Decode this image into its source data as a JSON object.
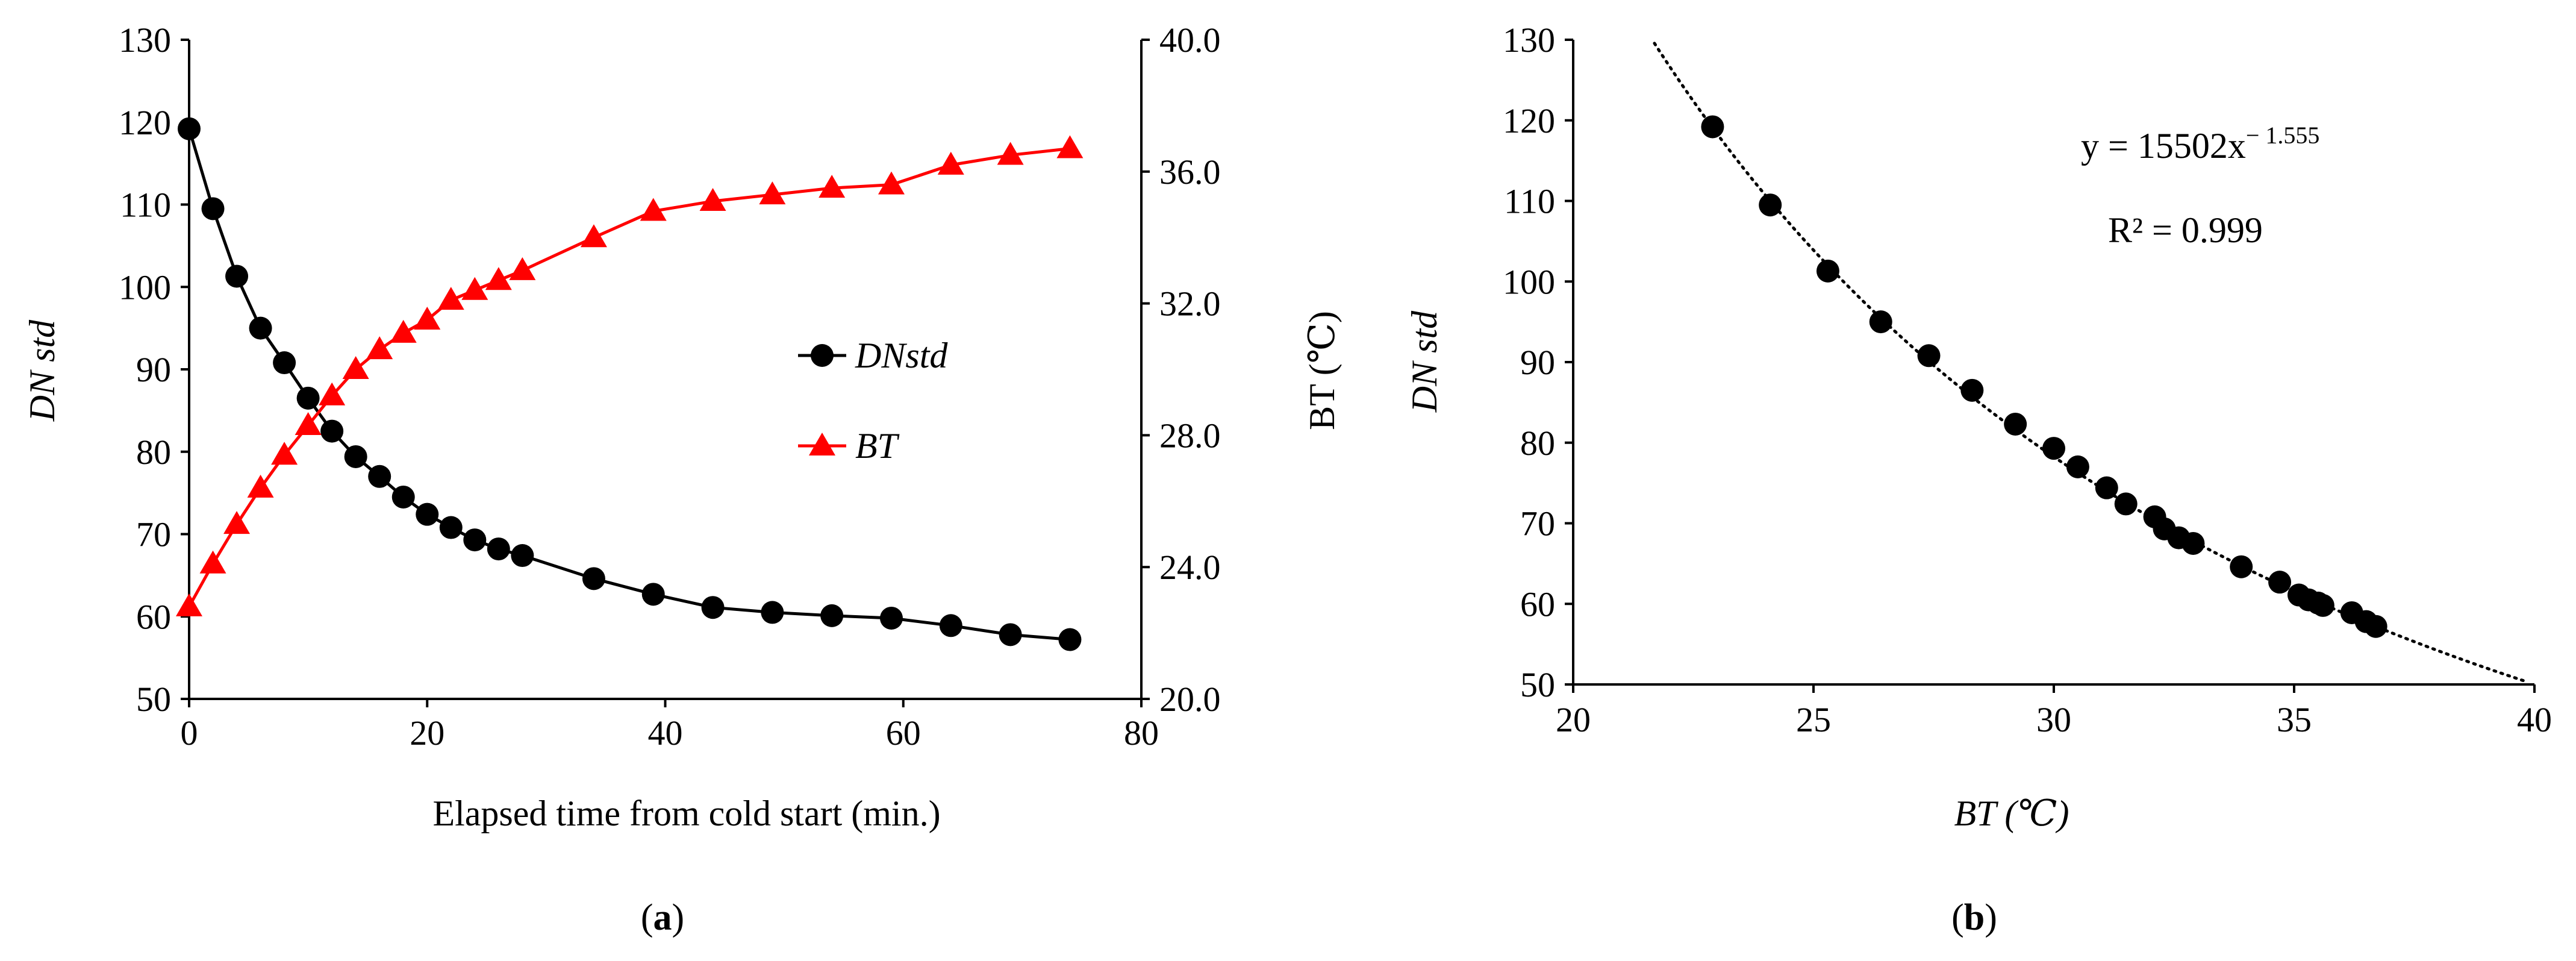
{
  "chart_data": [
    {
      "panel": "(a)",
      "panel_letter": "a",
      "type": "line",
      "xlabel": "Elapsed time from cold start (min.)",
      "ylabel_left": "DN std",
      "ylabel_right": "BT (℃)",
      "xlim": [
        0,
        80
      ],
      "ylim_left": [
        50,
        130
      ],
      "ylim_right": [
        20.0,
        40.0
      ],
      "x_ticks": [
        "0",
        "20",
        "40",
        "60",
        "80"
      ],
      "y_ticks_left": [
        "50",
        "60",
        "70",
        "80",
        "90",
        "100",
        "110",
        "120",
        "130"
      ],
      "y_ticks_right": [
        "20.0",
        "24.0",
        "28.0",
        "32.0",
        "36.0",
        "40.0"
      ],
      "x": [
        0,
        2,
        4,
        6,
        8,
        10,
        12,
        14,
        16,
        18,
        20,
        22,
        24,
        26,
        28,
        34,
        39,
        44,
        49,
        54,
        59,
        64,
        69,
        74
      ],
      "series": [
        {
          "name": "DNstd",
          "legend_label": "DNstd",
          "axis": "left",
          "color": "#000000",
          "marker": "circle",
          "values": [
            119.2,
            109.5,
            101.3,
            95.0,
            90.8,
            86.5,
            82.5,
            79.4,
            77.0,
            74.5,
            72.4,
            70.8,
            69.3,
            68.2,
            67.4,
            64.6,
            62.7,
            61.1,
            60.5,
            60.1,
            59.8,
            58.9,
            57.8,
            57.2
          ]
        },
        {
          "name": "BT",
          "legend_label": "BT",
          "axis": "right",
          "color": "#ff0000",
          "marker": "triangle",
          "values": [
            22.8,
            24.1,
            25.3,
            26.4,
            27.4,
            28.3,
            29.2,
            30.0,
            30.6,
            31.1,
            31.5,
            32.1,
            32.4,
            32.7,
            33.0,
            34.0,
            34.8,
            35.1,
            35.3,
            35.5,
            35.6,
            36.2,
            36.5,
            36.7
          ]
        }
      ]
    },
    {
      "panel": "(b)",
      "panel_letter": "b",
      "type": "scatter",
      "xlabel": "BT (℃)",
      "ylabel": "DN std",
      "xlim": [
        20,
        40
      ],
      "ylim": [
        50,
        130
      ],
      "x_ticks": [
        "20",
        "25",
        "30",
        "35",
        "40"
      ],
      "y_ticks": [
        "50",
        "60",
        "70",
        "80",
        "90",
        "100",
        "110",
        "120",
        "130"
      ],
      "x": [
        22.9,
        24.1,
        25.3,
        26.4,
        27.4,
        28.3,
        29.2,
        30.0,
        30.5,
        31.1,
        31.5,
        32.1,
        32.3,
        32.6,
        32.9,
        33.9,
        34.7,
        35.1,
        35.3,
        35.5,
        35.6,
        36.2,
        36.5,
        36.7
      ],
      "y": [
        119.2,
        109.5,
        101.3,
        95.0,
        90.8,
        86.5,
        82.3,
        79.3,
        77.0,
        74.4,
        72.4,
        70.8,
        69.3,
        68.2,
        67.5,
        64.6,
        62.7,
        61.1,
        60.5,
        60.1,
        59.8,
        58.9,
        57.8,
        57.2
      ],
      "trendline": {
        "type": "power",
        "a": 15502,
        "b": -1.555,
        "x_range": [
          21.6,
          39.8
        ]
      },
      "equation_text": "y = 15502x",
      "equation_exp": "− 1.555",
      "r2_text": "R² = 0.999"
    }
  ]
}
